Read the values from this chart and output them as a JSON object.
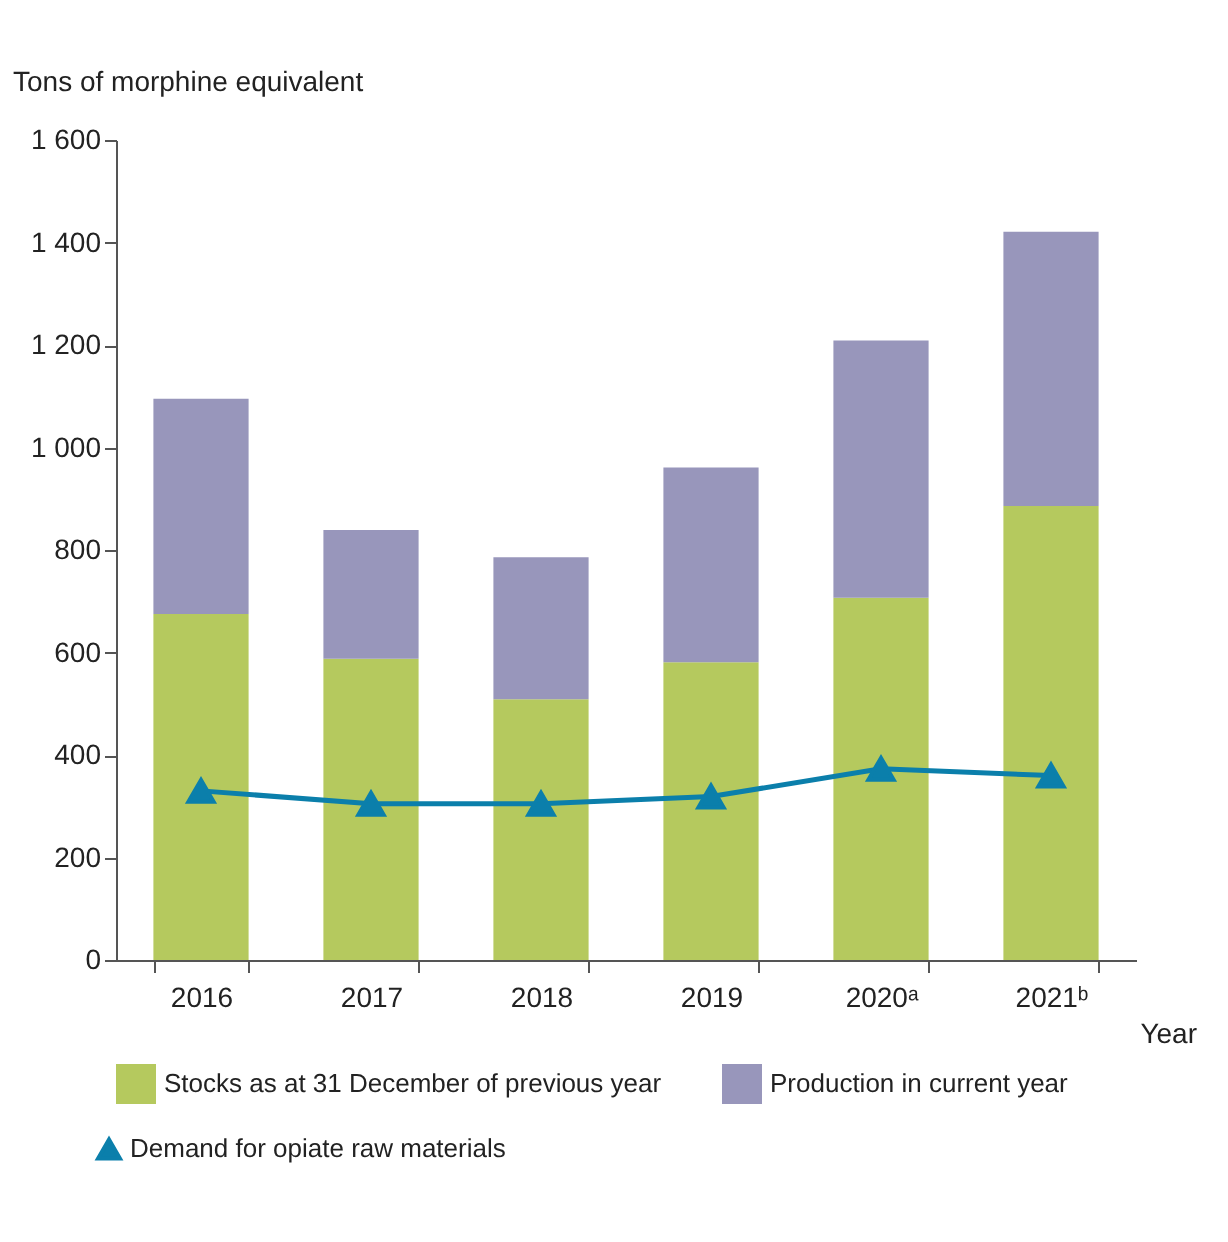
{
  "chart_data": {
    "type": "bar",
    "stacked": true,
    "ylabel": "Tons of morphine equivalent",
    "xlabel": "Year",
    "categories": [
      "2016",
      "2017",
      "2018",
      "2019",
      "2020ᵃ",
      "2021ᵇ"
    ],
    "series": [
      {
        "name": "Stocks as at 31 December of previous year",
        "color": "#b5c95e",
        "values": [
          675,
          588,
          509,
          581,
          707,
          886
        ]
      },
      {
        "name": "Production in current year",
        "color": "#9896bb",
        "values": [
          420,
          251,
          277,
          380,
          502,
          535
        ]
      },
      {
        "name": "Demand for opiate raw materials",
        "type": "line",
        "color": "#0b7fab",
        "marker": "triangle",
        "values": [
          330,
          305,
          305,
          319,
          373,
          360
        ]
      }
    ],
    "ylim": [
      0,
      1600
    ],
    "yticks": [
      0,
      200,
      400,
      600,
      800,
      {
        "value": 1000,
        "label": "1 000"
      },
      {
        "value": 1200,
        "label": "1 200"
      },
      {
        "value": 1400,
        "label": "1 400"
      },
      {
        "value": 1600,
        "label": "1 600"
      }
    ],
    "grid": false,
    "legend": "bottom"
  }
}
